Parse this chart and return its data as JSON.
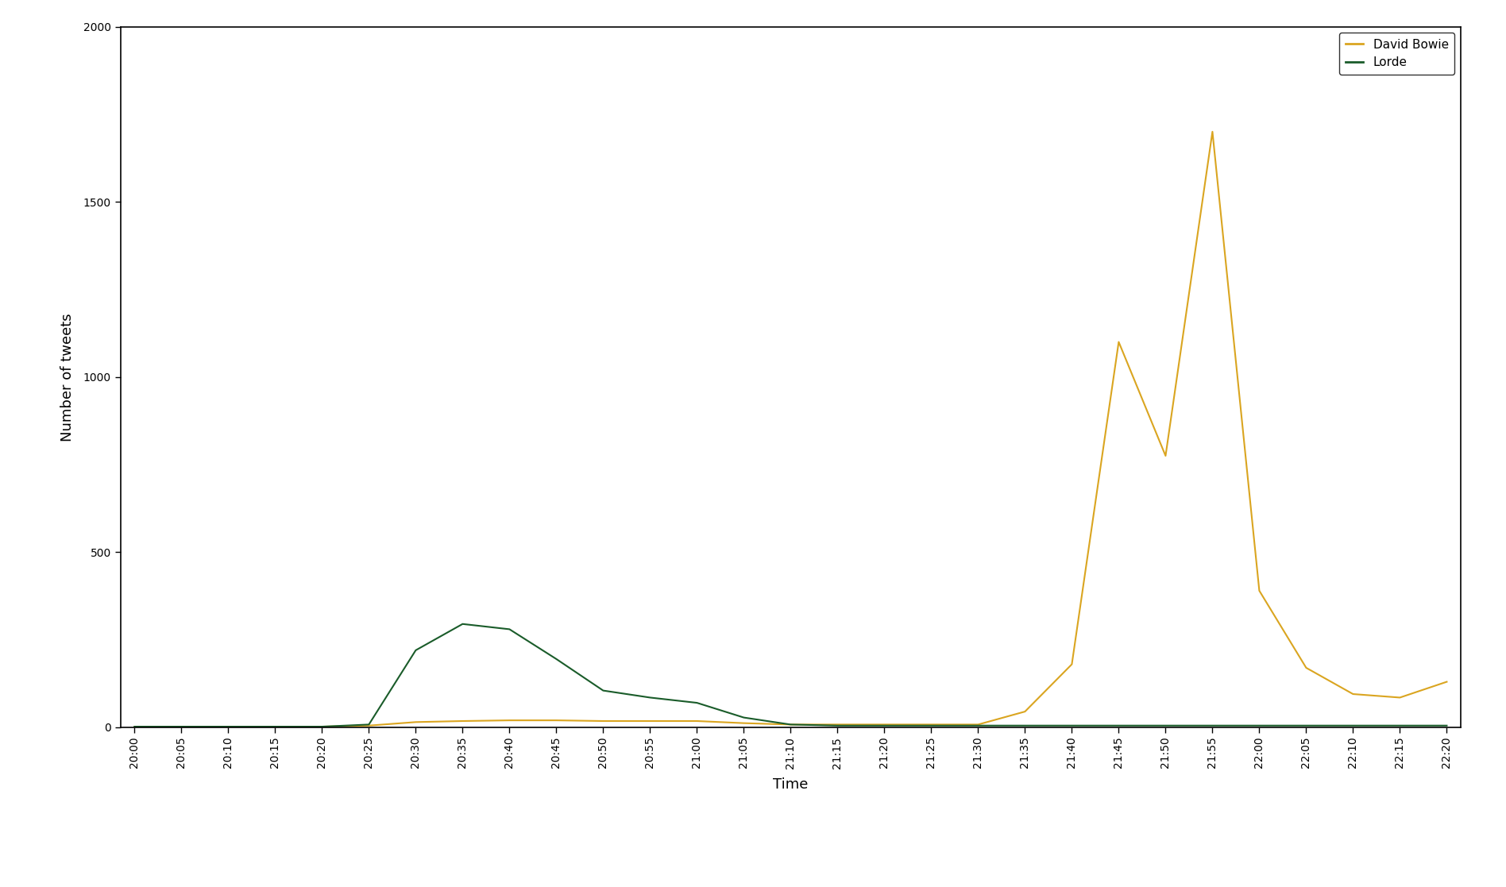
{
  "title": "",
  "xlabel": "Time",
  "ylabel": "Number of tweets",
  "ylim": [
    0,
    2000
  ],
  "legend_labels": [
    "David Bowie",
    "Lorde"
  ],
  "david_bowie_color": "#DAA520",
  "lorde_color": "#1a5c2a",
  "background_color": "#ffffff",
  "time_labels": [
    "20:00",
    "20:05",
    "20:10",
    "20:15",
    "20:20",
    "20:25",
    "20:30",
    "20:35",
    "20:40",
    "20:45",
    "20:50",
    "20:55",
    "21:00",
    "21:05",
    "21:10",
    "21:15",
    "21:20",
    "21:25",
    "21:30",
    "21:35",
    "21:40",
    "21:45",
    "21:50",
    "21:55",
    "22:00",
    "22:05",
    "22:10",
    "22:15",
    "22:20"
  ],
  "david_bowie_values": [
    2,
    2,
    2,
    2,
    2,
    5,
    15,
    18,
    20,
    20,
    18,
    18,
    18,
    12,
    8,
    8,
    8,
    8,
    8,
    45,
    180,
    1100,
    775,
    1700,
    390,
    170,
    95,
    85,
    130
  ],
  "lorde_values": [
    2,
    2,
    2,
    2,
    2,
    8,
    220,
    295,
    280,
    195,
    105,
    85,
    70,
    28,
    8,
    5,
    5,
    5,
    5,
    5,
    5,
    5,
    5,
    5,
    5,
    5,
    5,
    5,
    5
  ],
  "yticks": [
    0,
    500,
    1000,
    1500,
    2000
  ],
  "legend_fontsize": 11,
  "axis_fontsize": 13,
  "tick_fontsize": 10,
  "linewidth": 1.5
}
